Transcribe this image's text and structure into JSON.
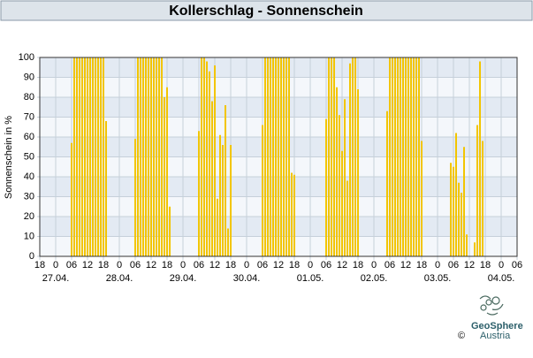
{
  "chart_data": {
    "type": "bar",
    "title": "Kollerschlag - Sonnenschein",
    "ylabel": "Sonnenschein in %",
    "color": "#f2c500",
    "x": [
      12,
      13,
      14,
      15,
      16,
      17,
      18,
      19,
      20,
      21,
      22,
      23,
      24,
      25,
      36,
      37,
      38,
      39,
      40,
      41,
      42,
      43,
      44,
      45,
      46,
      47,
      48,
      49,
      60,
      61,
      62,
      63,
      64,
      65,
      66,
      67,
      68,
      69,
      70,
      71,
      72,
      84,
      85,
      86,
      87,
      88,
      89,
      90,
      91,
      92,
      93,
      94,
      95,
      96,
      108,
      109,
      110,
      111,
      112,
      113,
      114,
      115,
      116,
      117,
      118,
      119,
      120,
      131,
      132,
      133,
      134,
      135,
      136,
      137,
      138,
      139,
      140,
      141,
      142,
      143,
      144,
      155,
      156,
      157,
      158,
      159,
      160,
      161,
      164,
      165,
      166,
      167
    ],
    "values": [
      57,
      100,
      100,
      100,
      100,
      100,
      100,
      100,
      100,
      100,
      100,
      100,
      100,
      68,
      59,
      100,
      100,
      100,
      100,
      100,
      100,
      100,
      100,
      100,
      100,
      80,
      85,
      25,
      63,
      100,
      100,
      98,
      93,
      78,
      96,
      29,
      61,
      56,
      76,
      14,
      56,
      66,
      100,
      100,
      100,
      100,
      100,
      100,
      100,
      100,
      100,
      100,
      42,
      41,
      69,
      100,
      100,
      100,
      85,
      71,
      53,
      79,
      38,
      97,
      100,
      100,
      84,
      73,
      100,
      100,
      100,
      100,
      100,
      100,
      100,
      100,
      100,
      100,
      100,
      100,
      58,
      47,
      45,
      62,
      37,
      32,
      55,
      11,
      7,
      66,
      98,
      58
    ],
    "xlim": [
      0,
      180
    ],
    "xticks": [
      {
        "value": 0,
        "label": "18"
      },
      {
        "value": 6,
        "label": "0"
      },
      {
        "value": 12,
        "label": "06"
      },
      {
        "value": 18,
        "label": "12"
      },
      {
        "value": 24,
        "label": "18"
      },
      {
        "value": 30,
        "label": "0"
      },
      {
        "value": 36,
        "label": "06"
      },
      {
        "value": 42,
        "label": "12"
      },
      {
        "value": 48,
        "label": "18"
      },
      {
        "value": 54,
        "label": "0"
      },
      {
        "value": 60,
        "label": "06"
      },
      {
        "value": 66,
        "label": "12"
      },
      {
        "value": 72,
        "label": "18"
      },
      {
        "value": 78,
        "label": "0"
      },
      {
        "value": 84,
        "label": "06"
      },
      {
        "value": 90,
        "label": "12"
      },
      {
        "value": 96,
        "label": "18"
      },
      {
        "value": 102,
        "label": "0"
      },
      {
        "value": 108,
        "label": "06"
      },
      {
        "value": 114,
        "label": "12"
      },
      {
        "value": 120,
        "label": "18"
      },
      {
        "value": 126,
        "label": "0"
      },
      {
        "value": 132,
        "label": "06"
      },
      {
        "value": 138,
        "label": "12"
      },
      {
        "value": 144,
        "label": "18"
      },
      {
        "value": 150,
        "label": "0"
      },
      {
        "value": 156,
        "label": "06"
      },
      {
        "value": 162,
        "label": "12"
      },
      {
        "value": 168,
        "label": "18"
      },
      {
        "value": 174,
        "label": "0"
      },
      {
        "value": 180,
        "label": "06"
      }
    ],
    "date_ticks": [
      {
        "value": 6,
        "label": "27.04."
      },
      {
        "value": 30,
        "label": "28.04."
      },
      {
        "value": 54,
        "label": "29.04."
      },
      {
        "value": 78,
        "label": "30.04."
      },
      {
        "value": 102,
        "label": "01.05."
      },
      {
        "value": 126,
        "label": "02.05."
      },
      {
        "value": 150,
        "label": "03.05."
      },
      {
        "value": 174,
        "label": "04.05."
      }
    ],
    "ylim": [
      0,
      100
    ],
    "yticks": [
      0,
      10,
      20,
      30,
      40,
      50,
      60,
      70,
      80,
      90,
      100
    ],
    "grid": true
  },
  "logo": {
    "name": "GeoSphere",
    "sub": "Austria",
    "copyright": "©"
  }
}
